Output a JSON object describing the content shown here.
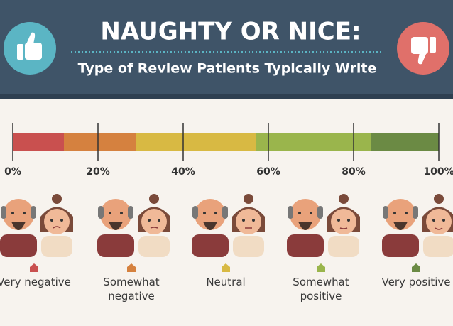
{
  "chart_data": {
    "type": "stacked_bar",
    "title": "NAUGHTY OR NICE:",
    "subtitle": "Type of Review Patients Typically Write",
    "series": [
      {
        "name": "Very negative",
        "color": "#c9504f",
        "values": [
          12
        ]
      },
      {
        "name": "Somewhat negative",
        "color": "#d5813f",
        "values": [
          17
        ]
      },
      {
        "name": "Neutral",
        "color": "#d8b943",
        "values": [
          28
        ]
      },
      {
        "name": "Somewhat positive",
        "color": "#9ab54c",
        "values": [
          27
        ]
      },
      {
        "name": "Very positive",
        "color": "#6b8a44",
        "values": [
          16
        ]
      }
    ],
    "xlim": [
      0,
      100
    ],
    "xticks": [
      {
        "value": 0,
        "label": "0%"
      },
      {
        "value": 20,
        "label": "20%"
      },
      {
        "value": 40,
        "label": "40%"
      },
      {
        "value": 60,
        "label": "60%"
      },
      {
        "value": 80,
        "label": "80%"
      },
      {
        "value": 100,
        "label": "100%"
      }
    ]
  }
}
